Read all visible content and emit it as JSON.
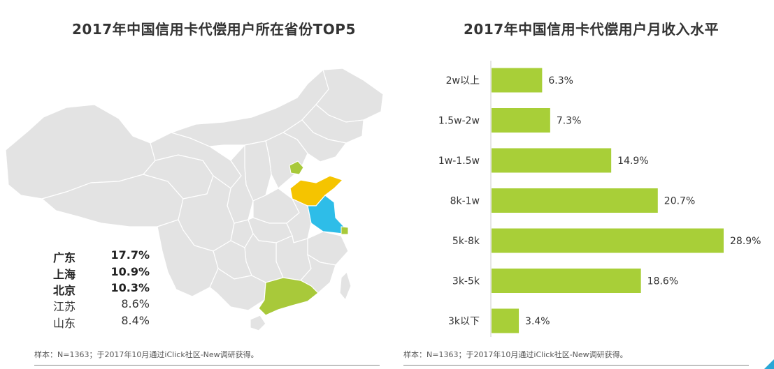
{
  "map_panel": {
    "title": "2017年中国信用卡代偿用户所在省份TOP5",
    "legend": [
      {
        "province": "广东",
        "value": "17.7%",
        "bold": true
      },
      {
        "province": "上海",
        "value": "10.9%",
        "bold": true
      },
      {
        "province": "北京",
        "value": "10.3%",
        "bold": true
      },
      {
        "province": "江苏",
        "value": "8.6%",
        "bold": false
      },
      {
        "province": "山东",
        "value": "8.4%",
        "bold": false
      }
    ],
    "colors": {
      "base": "#e3e3e3",
      "guangdong": "#a8c93a",
      "shandong": "#f5c400",
      "jiangsu": "#2ebde8",
      "beijing": "#a8c93a",
      "shanghai": "#a8c93a"
    },
    "note": "样本：N=1363；于2017年10月通过iClick社区-New调研获得。"
  },
  "bar_panel": {
    "title": "2017年中国信用卡代偿用户月收入水平",
    "note": "样本：N=1363；于2017年10月通过iClick社区-New调研获得。"
  },
  "chart_data": {
    "type": "bar",
    "orientation": "horizontal",
    "title": "2017年中国信用卡代偿用户月收入水平",
    "categories": [
      "2w以上",
      "1.5w-2w",
      "1w-1.5w",
      "8k-1w",
      "5k-8k",
      "3k-5k",
      "3k以下"
    ],
    "values": [
      6.3,
      7.3,
      14.9,
      20.7,
      28.9,
      18.6,
      3.4
    ],
    "value_labels": [
      "6.3%",
      "7.3%",
      "14.9%",
      "20.7%",
      "28.9%",
      "18.6%",
      "3.4%"
    ],
    "unit": "%",
    "xlim": [
      0,
      28.9
    ],
    "bar_color": "#a8cf38",
    "grid": false,
    "legend": "none"
  },
  "accent": "#2aa7d6"
}
